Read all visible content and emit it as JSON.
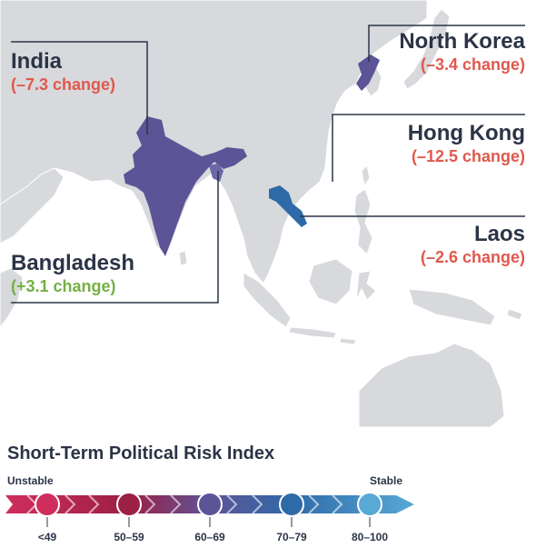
{
  "callouts": {
    "india": {
      "name": "India",
      "change": "(–7.3 change)"
    },
    "north_korea": {
      "name": "North Korea",
      "change": "(–3.4 change)"
    },
    "hong_kong": {
      "name": "Hong Kong",
      "change": "(–12.5 change)"
    },
    "laos": {
      "name": "Laos",
      "change": "(–2.6 change)"
    },
    "bangladesh": {
      "name": "Bangladesh",
      "change": "(+3.1 change)"
    }
  },
  "colors": {
    "negative_change": "#e0584d",
    "positive_change": "#74b043",
    "land": "#d7d9dc",
    "ocean": "#ffffff",
    "index_60_69": "#5d5497",
    "index_70_79": "#2f6aa8"
  },
  "legend": {
    "title": "Short-Term Political Risk Index",
    "low_end": "Unstable",
    "high_end": "Stable",
    "ranges": [
      "<49",
      "50–59",
      "60–69",
      "70–79",
      "80–100"
    ],
    "range_colors": [
      "#cf2e5b",
      "#9c1f44",
      "#5d5497",
      "#2f6aa8",
      "#57a9d6"
    ]
  }
}
